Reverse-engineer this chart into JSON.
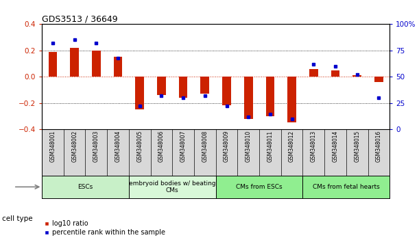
{
  "title": "GDS3513 / 36649",
  "samples": [
    "GSM348001",
    "GSM348002",
    "GSM348003",
    "GSM348004",
    "GSM348005",
    "GSM348006",
    "GSM348007",
    "GSM348008",
    "GSM348009",
    "GSM348010",
    "GSM348011",
    "GSM348012",
    "GSM348013",
    "GSM348014",
    "GSM348015",
    "GSM348016"
  ],
  "log10_ratio": [
    0.19,
    0.22,
    0.2,
    0.15,
    -0.25,
    -0.14,
    -0.16,
    -0.13,
    -0.22,
    -0.32,
    -0.3,
    -0.35,
    0.06,
    0.05,
    0.01,
    -0.04
  ],
  "percentile_rank": [
    82,
    85,
    82,
    68,
    22,
    32,
    30,
    32,
    22,
    12,
    14,
    10,
    62,
    60,
    52,
    30
  ],
  "cell_type_groups": [
    {
      "label": "ESCs",
      "start": 0,
      "end": 3,
      "color": "#c8f0c8"
    },
    {
      "label": "embryoid bodies w/ beating\nCMs",
      "start": 4,
      "end": 7,
      "color": "#d8f8d8"
    },
    {
      "label": "CMs from ESCs",
      "start": 8,
      "end": 11,
      "color": "#90ee90"
    },
    {
      "label": "CMs from fetal hearts",
      "start": 12,
      "end": 15,
      "color": "#90ee90"
    }
  ],
  "bar_color": "#cc2200",
  "dot_color": "#0000cc",
  "left_ylim": [
    -0.4,
    0.4
  ],
  "right_ylim": [
    0,
    100
  ],
  "left_yticks": [
    -0.4,
    -0.2,
    0,
    0.2,
    0.4
  ],
  "right_yticks": [
    0,
    25,
    50,
    75,
    100
  ],
  "right_yticklabels": [
    "0",
    "25",
    "50",
    "75",
    "100%"
  ],
  "hline_color": "#cc2200",
  "legend_items": [
    {
      "label": "log10 ratio",
      "color": "#cc2200"
    },
    {
      "label": "percentile rank within the sample",
      "color": "#0000cc"
    }
  ],
  "cell_type_label": "cell type",
  "figsize": [
    6.11,
    3.54
  ],
  "dpi": 100
}
